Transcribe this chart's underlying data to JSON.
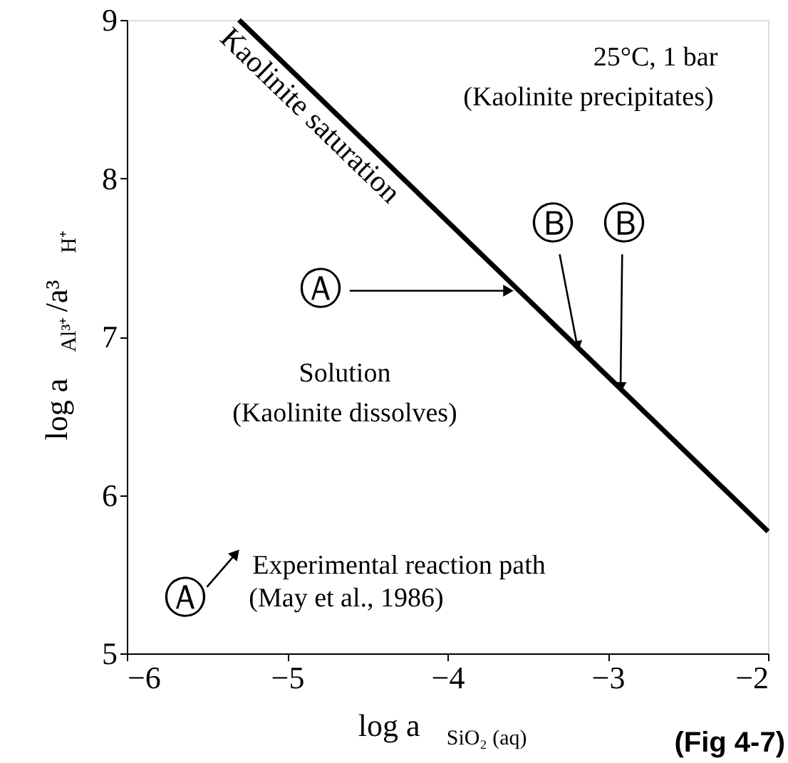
{
  "chart_data": {
    "type": "line",
    "xlabel": "log a $_{SiO₂ (aq)}$",
    "ylabel": "log a $_{Al³⁺}$/a³ $_{H⁺}$",
    "xlim": [
      -6,
      -2
    ],
    "ylim": [
      5,
      9
    ],
    "xticks": [
      -6,
      -5,
      -4,
      -3,
      -2
    ],
    "yticks": [
      5,
      6,
      7,
      8,
      9
    ],
    "series": [
      {
        "name": "Kaolinite saturation",
        "color": "#000000",
        "x": [
          -5.3,
          -2
        ],
        "values": [
          9,
          5.77
        ],
        "marker": "none"
      },
      {
        "color": "#000000",
        "x": [
          -4.61,
          -3.62
        ],
        "values": [
          7.29,
          7.29
        ],
        "marker": "triangle"
      },
      {
        "color": "#000000",
        "x": [
          -3.3,
          -3.19
        ],
        "values": [
          7.52,
          6.94
        ],
        "marker": "triangle"
      },
      {
        "color": "#000000",
        "x": [
          -2.91,
          -2.92
        ],
        "values": [
          7.52,
          6.68
        ],
        "marker": "triangle"
      },
      {
        "color": "#000000",
        "x": [
          -5.5,
          -5.32
        ],
        "values": [
          5.42,
          5.63
        ],
        "marker": "triangle"
      }
    ],
    "annotations": [
      "25°C, 1 bar",
      "(Kaolinite precipitates)",
      "Solution",
      "(Kaolinite dissolves)",
      "Ⓐ",
      "Ⓑ",
      "Ⓑ",
      "Ⓐ",
      "Experimental reaction path",
      "(May et al., 1986)",
      "(Fig 4-7)"
    ]
  }
}
